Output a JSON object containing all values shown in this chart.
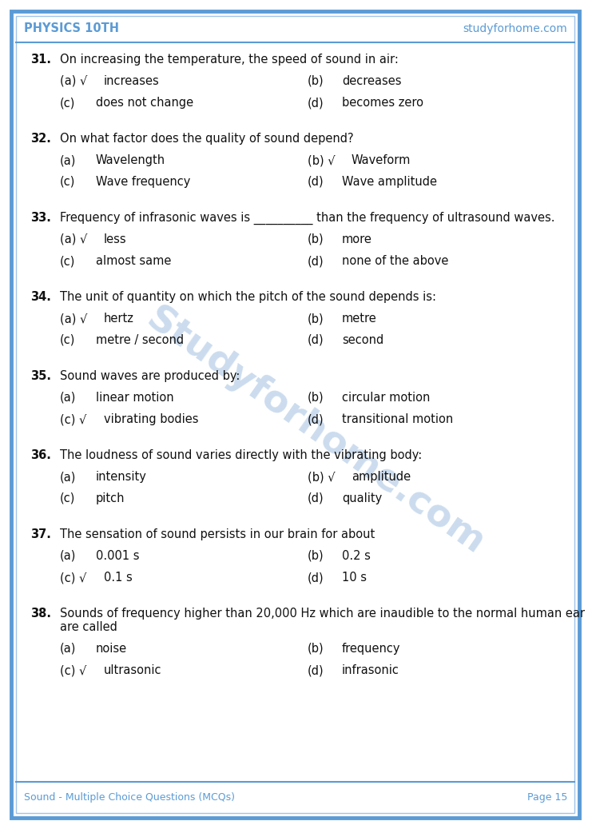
{
  "page_bg": "#ffffff",
  "outer_border_color": "#5b9bd5",
  "inner_border_color": "#a0c4e8",
  "header_left": "PHYSICS 10TH",
  "header_right": "studyforhome.com",
  "header_color": "#5b9bd5",
  "footer_left": "Sound - Multiple Choice Questions (MCQs)",
  "footer_right": "Page 15",
  "footer_color": "#5b9bd5",
  "watermark_text": "Studyforhome.com",
  "watermark_color": "#ccdcee",
  "text_color": "#111111",
  "font_size": 10.5,
  "questions": [
    {
      "num": "31.",
      "text": "On increasing the temperature, the speed of sound in air:",
      "text_lines": 1,
      "options": [
        {
          "label": "(a)",
          "check": true,
          "text": "increases"
        },
        {
          "label": "(b)",
          "check": false,
          "text": "decreases"
        },
        {
          "label": "(c)",
          "check": false,
          "text": "does not change"
        },
        {
          "label": "(d)",
          "check": false,
          "text": "becomes zero"
        }
      ]
    },
    {
      "num": "32.",
      "text": "On what factor does the quality of sound depend?",
      "text_lines": 1,
      "options": [
        {
          "label": "(a)",
          "check": false,
          "text": "Wavelength"
        },
        {
          "label": "(b)",
          "check": true,
          "text": "Waveform"
        },
        {
          "label": "(c)",
          "check": false,
          "text": "Wave frequency"
        },
        {
          "label": "(d)",
          "check": false,
          "text": "Wave amplitude"
        }
      ]
    },
    {
      "num": "33.",
      "text": "Frequency of infrasonic waves is __________ than the frequency of ultrasound waves.",
      "text_lines": 1,
      "options": [
        {
          "label": "(a)",
          "check": true,
          "text": "less"
        },
        {
          "label": "(b)",
          "check": false,
          "text": "more"
        },
        {
          "label": "(c)",
          "check": false,
          "text": "almost same"
        },
        {
          "label": "(d)",
          "check": false,
          "text": "none of the above"
        }
      ]
    },
    {
      "num": "34.",
      "text": "The unit of quantity on which the pitch of the sound depends is:",
      "text_lines": 1,
      "options": [
        {
          "label": "(a)",
          "check": true,
          "text": "hertz"
        },
        {
          "label": "(b)",
          "check": false,
          "text": "metre"
        },
        {
          "label": "(c)",
          "check": false,
          "text": "metre / second"
        },
        {
          "label": "(d)",
          "check": false,
          "text": "second"
        }
      ]
    },
    {
      "num": "35.",
      "text": "Sound waves are produced by:",
      "text_lines": 1,
      "options": [
        {
          "label": "(a)",
          "check": false,
          "text": "linear motion"
        },
        {
          "label": "(b)",
          "check": false,
          "text": "circular motion"
        },
        {
          "label": "(c)",
          "check": true,
          "text": "vibrating bodies"
        },
        {
          "label": "(d)",
          "check": false,
          "text": "transitional motion"
        }
      ]
    },
    {
      "num": "36.",
      "text": "The loudness of sound varies directly with the vibrating body:",
      "text_lines": 1,
      "options": [
        {
          "label": "(a)",
          "check": false,
          "text": "intensity"
        },
        {
          "label": "(b)",
          "check": true,
          "text": "amplitude"
        },
        {
          "label": "(c)",
          "check": false,
          "text": "pitch"
        },
        {
          "label": "(d)",
          "check": false,
          "text": "quality"
        }
      ]
    },
    {
      "num": "37.",
      "text": "The sensation of sound persists in our brain for about",
      "text_lines": 1,
      "options": [
        {
          "label": "(a)",
          "check": false,
          "text": "0.001 s"
        },
        {
          "label": "(b)",
          "check": false,
          "text": "0.2 s"
        },
        {
          "label": "(c)",
          "check": true,
          "text": "0.1 s"
        },
        {
          "label": "(d)",
          "check": false,
          "text": "10 s"
        }
      ]
    },
    {
      "num": "38.",
      "text": "Sounds of frequency higher than 20,000 Hz which are inaudible to the normal human ear are called",
      "text_lines": 2,
      "options": [
        {
          "label": "(a)",
          "check": false,
          "text": "noise"
        },
        {
          "label": "(b)",
          "check": false,
          "text": "frequency"
        },
        {
          "label": "(c)",
          "check": true,
          "text": "ultrasonic"
        },
        {
          "label": "(d)",
          "check": false,
          "text": "infrasonic"
        }
      ]
    }
  ]
}
